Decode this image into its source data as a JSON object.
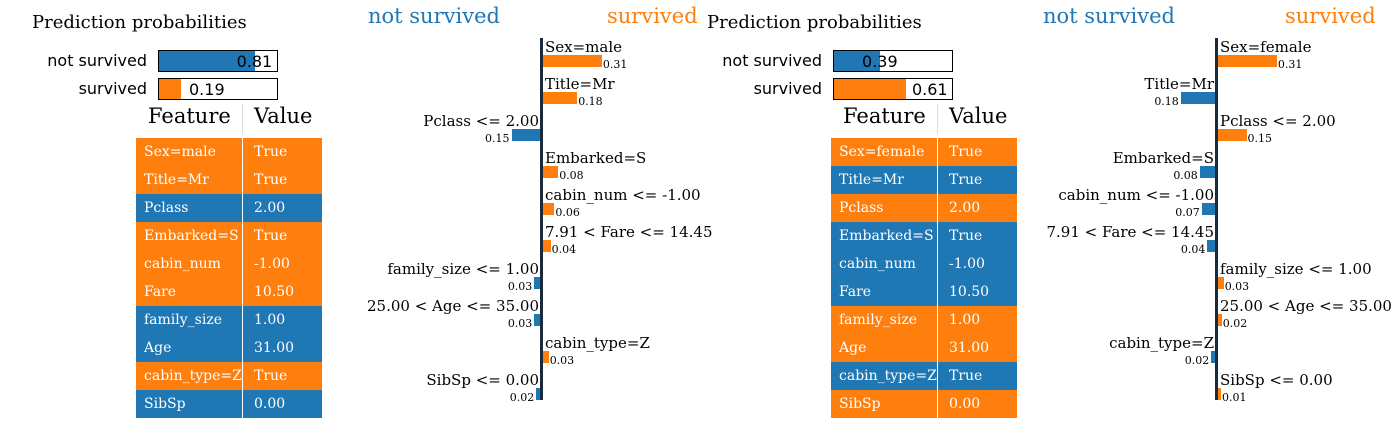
{
  "colors": {
    "not_survived": "#1f77b4",
    "survived": "#ff7f0e"
  },
  "chart_data": [
    {
      "type": "bar",
      "panel": "prediction_probabilities_1",
      "title": "Prediction probabilities",
      "categories": [
        "not survived",
        "survived"
      ],
      "values": [
        0.81,
        0.19
      ],
      "value_labels": [
        "0.81",
        "0.19"
      ]
    },
    {
      "type": "table",
      "panel": "feature_value_1",
      "columns": [
        "Feature",
        "Value"
      ],
      "rows": [
        {
          "feature": "Sex=male",
          "value": "True",
          "class": "survived"
        },
        {
          "feature": "Title=Mr",
          "value": "True",
          "class": "survived"
        },
        {
          "feature": "Pclass",
          "value": "2.00",
          "class": "not_survived"
        },
        {
          "feature": "Embarked=S",
          "value": "True",
          "class": "survived"
        },
        {
          "feature": "cabin_num",
          "value": "-1.00",
          "class": "survived"
        },
        {
          "feature": "Fare",
          "value": "10.50",
          "class": "survived"
        },
        {
          "feature": "family_size",
          "value": "1.00",
          "class": "not_survived"
        },
        {
          "feature": "Age",
          "value": "31.00",
          "class": "not_survived"
        },
        {
          "feature": "cabin_type=Z",
          "value": "True",
          "class": "survived"
        },
        {
          "feature": "SibSp",
          "value": "0.00",
          "class": "not_survived"
        }
      ]
    },
    {
      "type": "bar",
      "panel": "feature_weights_1",
      "class_labels": [
        "not survived",
        "survived"
      ],
      "features": [
        {
          "label": "Sex=male",
          "weight": 0.31,
          "value_label": "0.31",
          "class": "survived"
        },
        {
          "label": "Title=Mr",
          "weight": 0.18,
          "value_label": "0.18",
          "class": "survived"
        },
        {
          "label": "Pclass <= 2.00",
          "weight": 0.15,
          "value_label": "0.15",
          "class": "not_survived"
        },
        {
          "label": "Embarked=S",
          "weight": 0.08,
          "value_label": "0.08",
          "class": "survived"
        },
        {
          "label": "cabin_num <= -1.00",
          "weight": 0.06,
          "value_label": "0.06",
          "class": "survived"
        },
        {
          "label": "7.91 < Fare <= 14.45",
          "weight": 0.04,
          "value_label": "0.04",
          "class": "survived"
        },
        {
          "label": "family_size <= 1.00",
          "weight": 0.03,
          "value_label": "0.03",
          "class": "not_survived"
        },
        {
          "label": "25.00 < Age <= 35.00",
          "weight": 0.03,
          "value_label": "0.03",
          "class": "not_survived"
        },
        {
          "label": "cabin_type=Z",
          "weight": 0.03,
          "value_label": "0.03",
          "class": "survived"
        },
        {
          "label": "SibSp <= 0.00",
          "weight": 0.02,
          "value_label": "0.02",
          "class": "not_survived"
        }
      ]
    },
    {
      "type": "bar",
      "panel": "prediction_probabilities_2",
      "title": "Prediction probabilities",
      "categories": [
        "not survived",
        "survived"
      ],
      "values": [
        0.39,
        0.61
      ],
      "value_labels": [
        "0.39",
        "0.61"
      ]
    },
    {
      "type": "table",
      "panel": "feature_value_2",
      "columns": [
        "Feature",
        "Value"
      ],
      "rows": [
        {
          "feature": "Sex=female",
          "value": "True",
          "class": "survived"
        },
        {
          "feature": "Title=Mr",
          "value": "True",
          "class": "not_survived"
        },
        {
          "feature": "Pclass",
          "value": "2.00",
          "class": "survived"
        },
        {
          "feature": "Embarked=S",
          "value": "True",
          "class": "not_survived"
        },
        {
          "feature": "cabin_num",
          "value": "-1.00",
          "class": "not_survived"
        },
        {
          "feature": "Fare",
          "value": "10.50",
          "class": "not_survived"
        },
        {
          "feature": "family_size",
          "value": "1.00",
          "class": "survived"
        },
        {
          "feature": "Age",
          "value": "31.00",
          "class": "survived"
        },
        {
          "feature": "cabin_type=Z",
          "value": "True",
          "class": "not_survived"
        },
        {
          "feature": "SibSp",
          "value": "0.00",
          "class": "survived"
        }
      ]
    },
    {
      "type": "bar",
      "panel": "feature_weights_2",
      "class_labels": [
        "not survived",
        "survived"
      ],
      "features": [
        {
          "label": "Sex=female",
          "weight": 0.31,
          "value_label": "0.31",
          "class": "survived"
        },
        {
          "label": "Title=Mr",
          "weight": 0.18,
          "value_label": "0.18",
          "class": "not_survived"
        },
        {
          "label": "Pclass <= 2.00",
          "weight": 0.15,
          "value_label": "0.15",
          "class": "survived"
        },
        {
          "label": "Embarked=S",
          "weight": 0.08,
          "value_label": "0.08",
          "class": "not_survived"
        },
        {
          "label": "cabin_num <= -1.00",
          "weight": 0.07,
          "value_label": "0.07",
          "class": "not_survived"
        },
        {
          "label": "7.91 < Fare <= 14.45",
          "weight": 0.04,
          "value_label": "0.04",
          "class": "not_survived"
        },
        {
          "label": "family_size <= 1.00",
          "weight": 0.03,
          "value_label": "0.03",
          "class": "survived"
        },
        {
          "label": "25.00 < Age <= 35.00",
          "weight": 0.02,
          "value_label": "0.02",
          "class": "survived"
        },
        {
          "label": "cabin_type=Z",
          "weight": 0.02,
          "value_label": "0.02",
          "class": "not_survived"
        },
        {
          "label": "SibSp <= 0.00",
          "weight": 0.01,
          "value_label": "0.01",
          "class": "survived"
        }
      ]
    }
  ]
}
